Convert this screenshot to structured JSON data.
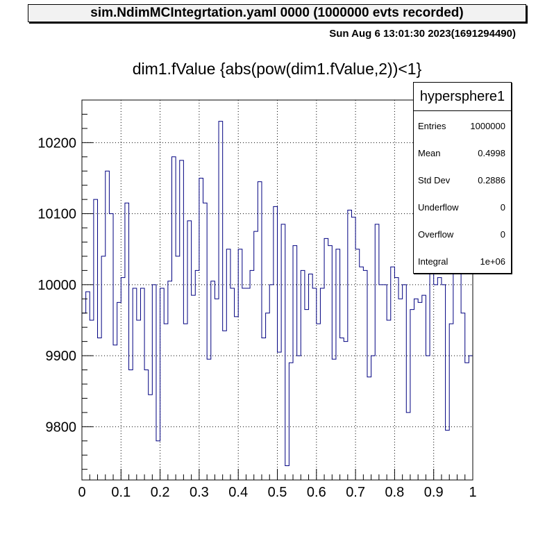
{
  "header": {
    "file_title": "sim.NdimMCIntegrtation.yaml  0000 (1000000 evts recorded)",
    "datestamp": "Sun Aug  6 13:01:30 2023(1691294490)"
  },
  "stats_box": {
    "title": "hypersphere1",
    "rows": [
      {
        "label": "Entries",
        "value": "1000000"
      },
      {
        "label": "Mean",
        "value": "0.4998"
      },
      {
        "label": "Std Dev",
        "value": "0.2886"
      },
      {
        "label": "Underflow",
        "value": "0"
      },
      {
        "label": "Overflow",
        "value": "0"
      },
      {
        "label": "Integral",
        "value": "1e+06"
      }
    ]
  },
  "colors": {
    "line": "#000080",
    "grid": "#000000",
    "axis": "#000000"
  },
  "chart_data": {
    "type": "histogram",
    "title": "dim1.fValue {abs(pow(dim1.fValue,2))<1}",
    "xlabel": "",
    "ylabel": "",
    "xlim": [
      0,
      1
    ],
    "ylim": [
      9725,
      10260
    ],
    "xticks": [
      "0",
      "0.1",
      "0.2",
      "0.3",
      "0.4",
      "0.5",
      "0.6",
      "0.7",
      "0.8",
      "0.9",
      "1"
    ],
    "yticks": [
      "9800",
      "9900",
      "10000",
      "10100",
      "10200"
    ],
    "grid": true,
    "bins": 100,
    "values": [
      9960,
      9990,
      9950,
      10120,
      9925,
      10040,
      10160,
      10100,
      9915,
      9975,
      10010,
      10115,
      9880,
      9995,
      9950,
      9995,
      9880,
      9845,
      10000,
      9780,
      9995,
      9945,
      10005,
      10180,
      10040,
      10175,
      9945,
      10090,
      9985,
      10020,
      10150,
      10115,
      9895,
      10005,
      9980,
      10230,
      9935,
      10050,
      9995,
      9955,
      10050,
      9995,
      9995,
      10020,
      10075,
      10145,
      9925,
      9960,
      10000,
      10110,
      9905,
      10085,
      9745,
      9890,
      10055,
      9900,
      10020,
      9965,
      10015,
      9995,
      9945,
      9995,
      10065,
      10055,
      9895,
      10050,
      9925,
      9920,
      10105,
      10095,
      10050,
      10025,
      10020,
      9870,
      9900,
      10085,
      10000,
      10000,
      9950,
      10025,
      10010,
      9980,
      10000,
      9820,
      9965,
      9980,
      9975,
      9985,
      9900,
      10025,
      10000,
      10010,
      10000,
      9795,
      9945,
      10080,
      10110,
      9960,
      9890,
      9900
    ]
  }
}
